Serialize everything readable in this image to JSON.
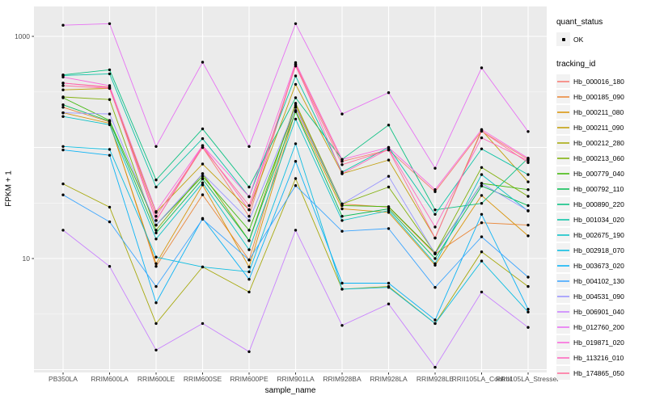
{
  "figure": {
    "xlabel": "sample_name",
    "ylabel": "FPKM + 1"
  },
  "legend_quant": {
    "title": "quant_status",
    "ok_label": "OK"
  },
  "legend_tracking": {
    "title": "tracking_id"
  },
  "colors": {
    "panel_bg": "#EBEBEB",
    "grid": "#FFFFFF",
    "axis_text": "#4D4D4D",
    "tick": "#333333",
    "key_bg": "#F2F2F2",
    "point": "#000000"
  },
  "chart_data": {
    "type": "line",
    "title": "",
    "xlabel": "sample_name",
    "ylabel": "FPKM + 1",
    "y_scale": "log10",
    "y_tick_labels": [
      "10",
      "1000"
    ],
    "y_tick_values": [
      10,
      1000
    ],
    "y_gridlines_major": [
      1,
      10,
      100,
      1000
    ],
    "y_gridlines_minor": [
      3.16,
      31.6,
      316
    ],
    "ylim": [
      0.94,
      1860
    ],
    "legend_position": "right",
    "point_marker": "black dot on every value",
    "categories": [
      "PB350LA",
      "RRIM600LA",
      "RRIM600LE",
      "RRIM600SE",
      "RRIM600PE",
      "RRIM901LA",
      "RRIM928BA",
      "RRIM928LA",
      "RRIM928LE",
      "RRII105LA_Control",
      "RRII105LA_Stressed"
    ],
    "quant_status_items": [
      {
        "label": "OK",
        "marker": "point"
      }
    ],
    "series": [
      {
        "name": "Hb_000016_180",
        "color": "#F8766D",
        "values": [
          380,
          350,
          22,
          100,
          24,
          560,
          75,
          95,
          40,
          140,
          78
        ]
      },
      {
        "name": "Hb_000185_090",
        "color": "#EA8331",
        "values": [
          230,
          170,
          8.5,
          37.5,
          9.7,
          240,
          31,
          29,
          11,
          21,
          20
        ]
      },
      {
        "name": "Hb_000211_080",
        "color": "#D89000",
        "values": [
          205,
          165,
          9,
          46,
          8.4,
          215,
          28,
          26,
          8.7,
          37,
          16
        ]
      },
      {
        "name": "Hb_000211_090",
        "color": "#C09B00",
        "values": [
          330,
          340,
          26,
          71,
          27.5,
          370,
          58,
          77,
          15.3,
          143,
          49
        ]
      },
      {
        "name": "Hb_000212_280",
        "color": "#A3A500",
        "values": [
          47,
          29,
          2.6,
          8.4,
          5.0,
          52.5,
          5.3,
          5.6,
          2.6,
          11.5,
          5.6
        ]
      },
      {
        "name": "Hb_000213_060",
        "color": "#7CAE00",
        "values": [
          285,
          270,
          18,
          58,
          14.5,
          250,
          31,
          44,
          11.2,
          66,
          36.3
        ]
      },
      {
        "name": "Hb_000779_040",
        "color": "#39B600",
        "values": [
          280,
          175,
          20,
          55,
          18,
          230,
          30,
          29.3,
          11.2,
          47.5,
          41.7
        ]
      },
      {
        "name": "Hb_000792_110",
        "color": "#00BB4E",
        "values": [
          242,
          172,
          17,
          52,
          14.5,
          210,
          24,
          28,
          10,
          45,
          30
        ]
      },
      {
        "name": "Hb_000890_220",
        "color": "#00BF7D",
        "values": [
          450,
          500,
          51,
          147,
          44,
          280,
          78,
          159,
          27.4,
          31.4,
          80
        ]
      },
      {
        "name": "Hb_001034_020",
        "color": "#00C1A3",
        "values": [
          445,
          460,
          44,
          120,
          36,
          440,
          60,
          100,
          25,
          97,
          57
        ]
      },
      {
        "name": "Hb_002675_190",
        "color": "#00BFC4",
        "values": [
          190,
          160,
          15,
          48,
          12,
          180,
          22,
          27,
          9,
          57,
          26.8
        ]
      },
      {
        "name": "Hb_002918_070",
        "color": "#00BAE0",
        "values": [
          102,
          96,
          10.3,
          8.4,
          7.6,
          108,
          5.3,
          5.5,
          2.6,
          9.5,
          3.3
        ]
      },
      {
        "name": "Hb_003673_020",
        "color": "#00B0F6",
        "values": [
          95,
          85,
          4,
          23,
          6.5,
          75,
          6,
          6,
          2.8,
          25,
          3.5
        ]
      },
      {
        "name": "Hb_004102_130",
        "color": "#35A2FF",
        "values": [
          37.4,
          21.4,
          5.6,
          22.6,
          9.7,
          45.4,
          17.6,
          18.6,
          5.5,
          15.7,
          6.8
        ]
      },
      {
        "name": "Hb_004531_090",
        "color": "#9590FF",
        "values": [
          205,
          200,
          20,
          58,
          22,
          230,
          31,
          55,
          11,
          47.5,
          27
        ]
      },
      {
        "name": "Hb_006901_040",
        "color": "#C77CFF",
        "values": [
          18,
          8.5,
          1.5,
          2.6,
          1.45,
          18,
          2.5,
          3.9,
          1.05,
          5.0,
          2.4
        ]
      },
      {
        "name": "Hb_012760_200",
        "color": "#E76BF3",
        "values": [
          1260,
          1300,
          102,
          585,
          102,
          1300,
          200,
          311,
          65,
          520,
          139
        ]
      },
      {
        "name": "Hb_019871_020",
        "color": "#FA62DB",
        "values": [
          430,
          360,
          26.5,
          104,
          36,
          580,
          78,
          100,
          41.7,
          145,
          80
        ]
      },
      {
        "name": "Hb_113216_010",
        "color": "#FF62BC",
        "values": [
          380,
          345,
          22,
          104,
          27.5,
          560,
          58,
          97,
          19.2,
          122,
          76
        ]
      },
      {
        "name": "Hb_174865_050",
        "color": "#FF6A98",
        "values": [
          360,
          340,
          24,
          100,
          30,
          540,
          70,
          95,
          15.3,
          140,
          73
        ]
      }
    ]
  }
}
